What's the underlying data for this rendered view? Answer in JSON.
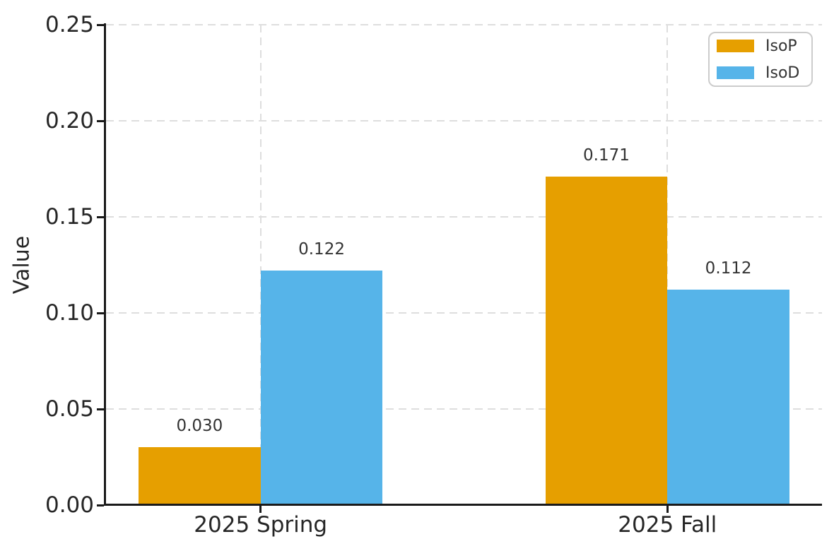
{
  "chart_data": {
    "type": "bar",
    "categories": [
      "2025 Spring",
      "2025 Fall"
    ],
    "series": [
      {
        "name": "IsoP",
        "color": "#E69F00",
        "values": [
          0.03,
          0.171
        ],
        "value_labels": [
          "0.030",
          "0.171"
        ]
      },
      {
        "name": "IsoD",
        "color": "#56B4E9",
        "values": [
          0.122,
          0.112
        ],
        "value_labels": [
          "0.122",
          "0.112"
        ]
      }
    ],
    "title": "",
    "xlabel": "",
    "ylabel": "Value",
    "ylim": [
      0,
      0.25
    ],
    "yticks": [
      0,
      0.05,
      0.1,
      0.15,
      0.2,
      0.25
    ],
    "ytick_labels": [
      "0.00",
      "0.05",
      "0.10",
      "0.15",
      "0.20",
      "0.25"
    ],
    "grid": {
      "enabled": true,
      "axis": "both",
      "style": "dashed",
      "color": "#dedede"
    },
    "legend": {
      "position": "upper right",
      "entries": [
        "IsoP",
        "IsoD"
      ]
    },
    "colors": {
      "axis": "#1a1a1a",
      "text": "#262626",
      "annotation": "#333333",
      "background": "#ffffff"
    }
  }
}
